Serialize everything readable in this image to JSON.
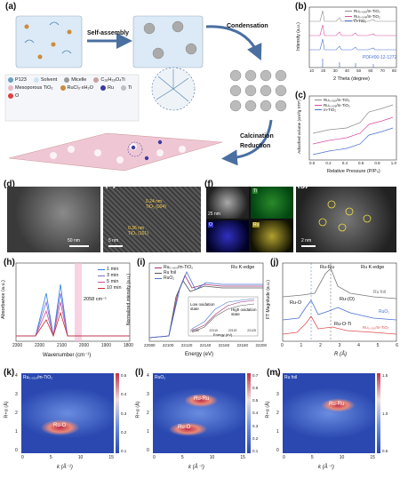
{
  "panel_labels": {
    "a": "(a)",
    "b": "(b)",
    "c": "(c)",
    "d": "(d)",
    "e": "(e)",
    "f": "(f)",
    "g": "(g)",
    "h": "(h)",
    "i": "(i)",
    "j": "(j)",
    "k": "(k)",
    "l": "(l)",
    "m": "(m)"
  },
  "schematic": {
    "self_assembly": "Self-assembly",
    "condensation": "Condensation",
    "calcination": "Calcination",
    "reduction": "Reduction",
    "legend": [
      {
        "label": "P123",
        "color": "#6aa0c8"
      },
      {
        "label": "Solvent",
        "color": "#cfe3f2"
      },
      {
        "label": "Micelle",
        "color": "#999999"
      },
      {
        "label": "C₁₆H₃₆O₄Ti",
        "color": "#c9a0a0"
      },
      {
        "label": "Mesoporous TiO₂",
        "color": "#e7b9c9"
      },
      {
        "label": "RuCl₃·xH₂O",
        "color": "#d08a3a"
      },
      {
        "label": "Ru",
        "color": "#3a3aa0"
      },
      {
        "label": "Ti",
        "color": "#c0c0c0"
      },
      {
        "label": "O",
        "color": "#e04040"
      }
    ]
  },
  "xrd": {
    "legend": [
      "Ru₀.₀₅₀/m-TiO₂",
      "Ru₀.₀₀₉/m-TiO₂",
      "m-TiO₂"
    ],
    "legend_colors": [
      "#8c8c8c",
      "#d84ca0",
      "#4a6fd0"
    ],
    "pdf_label": "PDF#00-12-1272",
    "xlabel": "2 Theta (degree)",
    "ylabel": "Intensity (a.u.)",
    "xticks": [
      "10",
      "20",
      "30",
      "40",
      "50",
      "60",
      "70",
      "80"
    ]
  },
  "bet": {
    "legend": [
      "Ru₀.₀₅₀/m-TiO₂",
      "Ru₀.₀₀₉/m-TiO₂",
      "m-TiO₂"
    ],
    "xlabel": "Relative Pressure (P/P₀)",
    "ylabel": "Adsorbed volume (cm³/g STP)",
    "xticks": [
      "0.0",
      "0.2",
      "0.4",
      "0.6",
      "0.8",
      "1.0"
    ]
  },
  "micro": {
    "d_scale": "50 nm",
    "e_label1": "0.24 nm",
    "e_label1b": "TiO₂ (004)",
    "e_label2": "0.36 nm",
    "e_label2b": "TiO₂ (101)",
    "e_scale": "5 nm",
    "f_scale": "25 nm",
    "f_ti": "Ti",
    "f_o": "O",
    "f_ru": "Ru",
    "g_scale": "2 nm"
  },
  "ir": {
    "legend": [
      "1 min",
      "3 min",
      "5 min",
      "10 min"
    ],
    "legend_colors": [
      "#2a7de0",
      "#7a6fd0",
      "#d0509f",
      "#c03030"
    ],
    "peak_label": "2058 cm⁻¹",
    "xlabel": "Wavenumber (cm⁻¹)",
    "ylabel": "Absorbance (a.u.)",
    "xticks": [
      "2300",
      "2200",
      "2100",
      "2000",
      "1900",
      "1800"
    ]
  },
  "xanes": {
    "legend": [
      "Ru₀.₀₅₀/m-TiO₂",
      "Ru foil",
      "RuO₂"
    ],
    "legend_colors": [
      "#a03070",
      "#555555",
      "#4a6fd0"
    ],
    "edge": "Ru K-edge",
    "inset_low": "Low oxidation state",
    "inset_high": "High oxidation state",
    "inset_xlabel": "Energy (eV)",
    "inset_xticks": [
      "22100",
      "22110",
      "22120",
      "22125"
    ],
    "xlabel": "Energy (eV)",
    "ylabel": "Normalized intensity (a.u.)",
    "xticks": [
      "22080",
      "22100",
      "22120",
      "22140",
      "22160",
      "22180",
      "22200"
    ]
  },
  "exafs": {
    "edge": "Ru K-edge",
    "ru_ru": "Ru-Ru",
    "ru_o": "Ru-O",
    "ru_o_paren": "Ru-(O)",
    "ru_o_ti": "Ru-O-Ti",
    "foil": "Ru foil",
    "ruo2": "RuO₂",
    "sample": "Ru₀.₀₅₀/m-TiO₂",
    "xlabel": "R (Å)",
    "ylabel": "FT Magnitude (a.u.)",
    "xticks": [
      "0",
      "1",
      "2",
      "3",
      "4",
      "5",
      "6"
    ]
  },
  "wavelet": [
    {
      "title": "Ru₀.₀₅₀/m-TiO₂",
      "spot": "Ru-O",
      "cbar": [
        "0.5",
        "0.4",
        "0.3",
        "0.2",
        "0.1"
      ]
    },
    {
      "title": "RuO₂",
      "spot": "Ru-O",
      "spot2": "Ru-Ru",
      "cbar": [
        "0.7",
        "0.6",
        "0.5",
        "0.4",
        "0.3",
        "0.2",
        "0.1"
      ]
    },
    {
      "title": "Ru foil",
      "spot": "Ru-Ru",
      "cbar": [
        "1.5",
        "1.0",
        "0.5"
      ]
    }
  ],
  "wavelet_axes": {
    "xlabel": "k (Å⁻¹)",
    "ylabel": "R+α (Å)",
    "xticks": [
      "0",
      "5",
      "10",
      "15"
    ],
    "yticks": [
      "0",
      "1",
      "2",
      "3",
      "4"
    ]
  }
}
